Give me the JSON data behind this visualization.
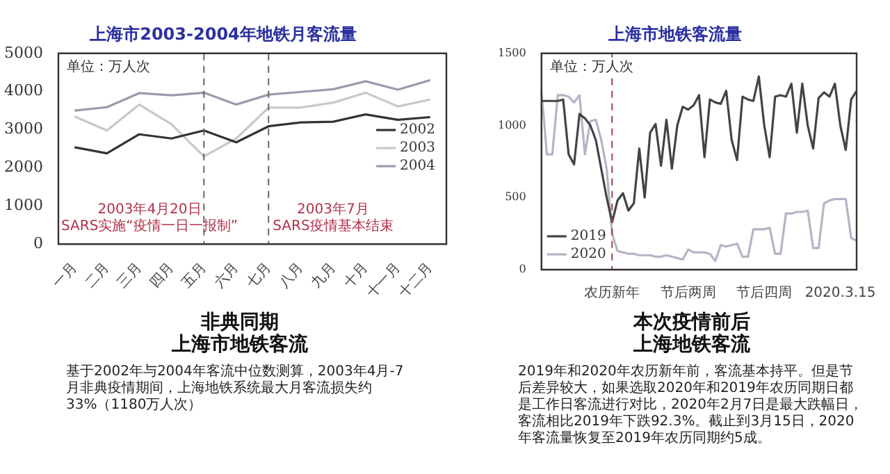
{
  "chart_data": [
    {
      "type": "line",
      "title": "上海市2003-2004年地铁月客流量",
      "ylabel": "单位：万人次",
      "categories": [
        "一月",
        "二月",
        "三月",
        "四月",
        "五月",
        "六月",
        "七月",
        "八月",
        "九月",
        "十月",
        "十一月",
        "十二月"
      ],
      "series": [
        {
          "name": "2002",
          "color": "#333333",
          "values": [
            2540,
            2380,
            2880,
            2770,
            2980,
            2670,
            3090,
            3190,
            3210,
            3400,
            3260,
            3330
          ]
        },
        {
          "name": "2003",
          "color": "#c8c8c8",
          "values": [
            3350,
            2980,
            3660,
            3140,
            2300,
            2770,
            3580,
            3580,
            3710,
            3970,
            3610,
            3790
          ]
        },
        {
          "name": "2004",
          "color": "#9a9aae",
          "values": [
            3500,
            3590,
            3960,
            3900,
            3970,
            3660,
            3920,
            3990,
            4060,
            4270,
            4050,
            4300
          ]
        }
      ],
      "ylim": [
        0,
        5000
      ],
      "yticks": [
        0,
        1000,
        2000,
        3000,
        4000,
        5000
      ],
      "grid": false,
      "legend": "right",
      "marker": "none",
      "line_style": "solid",
      "ref_lines": [
        {
          "axis": "x",
          "value": "五月",
          "label": "2003年4月20日\nSARS实施“疫情一日一报制”",
          "color": "#666666",
          "line_style": "dashed"
        },
        {
          "axis": "x",
          "value": "七月",
          "label": "2003年7月\nSARS疫情基本结束",
          "color": "#666666",
          "line_style": "dashed"
        }
      ],
      "annotations": [
        "非典同期",
        "上海市地铁客流",
        "基于2002年与2004年客流中位数测算，2003年4月-7月非典疫情期间，上海地铁系统最大月客流损失约33%（1180万人次）"
      ]
    },
    {
      "type": "line",
      "title": "上海市地铁客流量",
      "ylabel": "单位：万人次",
      "categories": [
        null,
        null,
        null,
        null,
        null,
        null,
        null,
        null,
        null,
        null,
        null,
        null,
        null,
        "农历新年",
        null,
        null,
        null,
        null,
        null,
        null,
        null,
        null,
        null,
        null,
        null,
        null,
        null,
        "节后两周",
        null,
        null,
        null,
        null,
        null,
        null,
        null,
        null,
        null,
        null,
        null,
        null,
        null,
        "节后四周",
        null,
        null,
        null,
        null,
        null,
        null,
        null,
        null,
        null,
        null,
        null,
        null,
        null,
        "2020.3.15",
        null,
        null,
        null
      ],
      "series": [
        {
          "name": "2019",
          "color": "#444444",
          "values": [
            1170,
            1170,
            1170,
            1170,
            1180,
            800,
            730,
            1080,
            1050,
            1000,
            900,
            700,
            500,
            330,
            480,
            530,
            410,
            460,
            840,
            500,
            950,
            1010,
            720,
            1040,
            700,
            1000,
            1130,
            1110,
            1140,
            1210,
            780,
            1180,
            1160,
            1150,
            1240,
            900,
            760,
            1200,
            1180,
            1170,
            1340,
            1000,
            780,
            1200,
            1210,
            1200,
            1290,
            950,
            1290,
            1000,
            840,
            1190,
            1230,
            1200,
            1290,
            1000,
            830,
            1180,
            1240
          ]
        },
        {
          "name": "2020",
          "color": "#b4b4c6",
          "values": [
            1240,
            800,
            800,
            1210,
            1210,
            1200,
            1160,
            1210,
            800,
            1030,
            1040,
            900,
            700,
            250,
            130,
            120,
            110,
            110,
            100,
            100,
            100,
            90,
            90,
            100,
            90,
            80,
            70,
            140,
            120,
            120,
            120,
            110,
            60,
            170,
            160,
            170,
            180,
            90,
            90,
            280,
            280,
            280,
            290,
            110,
            110,
            390,
            390,
            400,
            400,
            410,
            150,
            150,
            460,
            480,
            490,
            490,
            490,
            220,
            200
          ]
        }
      ],
      "ylim": [
        0,
        1500
      ],
      "yticks": [
        0,
        500,
        1000,
        1500
      ],
      "grid": false,
      "legend": "bottom left",
      "marker": "none",
      "line_style": "solid",
      "ref_lines": [
        {
          "axis": "x",
          "value": "农历新年",
          "color": "#a04050",
          "line_style": "dashed"
        }
      ],
      "annotations": [
        "本次疫情前后",
        "上海地铁客流",
        "2019年和2020年农历新年前，客流基本持平。但是节后差异较大，如果选取2020年和2019年农历同期日都是工作日客流进行对比，2020年2月7日是最大跌幅日，客流相比2019年下跌92.3%。截止到3月15日，2020年客流量恢复至2019年农历同期约5成。"
      ]
    }
  ]
}
